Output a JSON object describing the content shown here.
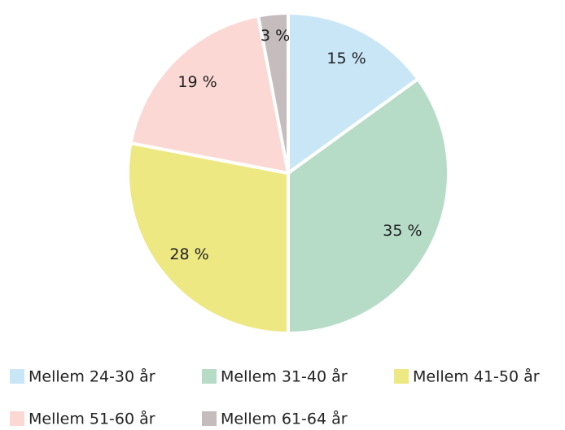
{
  "chart_data": {
    "type": "pie",
    "categories": [
      "Mellem 24-30 år",
      "Mellem 31-40 år",
      "Mellem 41-50 år",
      "Mellem 51-60 år",
      "Mellem 61-64 år"
    ],
    "values": [
      15,
      35,
      28,
      19,
      3
    ],
    "value_labels": [
      "15 %",
      "35 %",
      "28 %",
      "19 %",
      "3 %"
    ],
    "colors": [
      "#c9e6f7",
      "#b6dcc7",
      "#eee883",
      "#fbd8d3",
      "#c5bdbd"
    ],
    "legend": "bottom"
  }
}
